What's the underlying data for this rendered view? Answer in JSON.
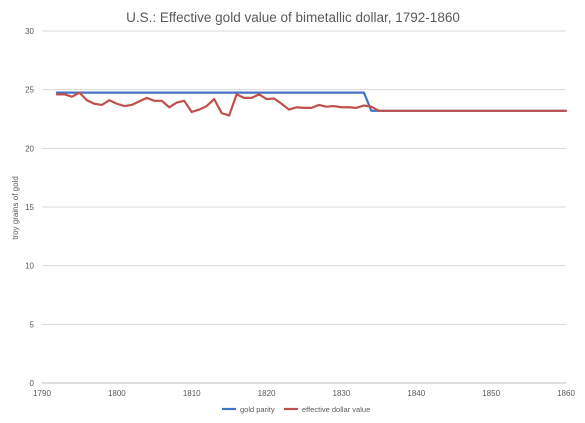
{
  "chart_data": {
    "type": "line",
    "title": "U.S.: Effective gold value of bimetallic dollar, 1792-1860",
    "xlabel": "",
    "ylabel": "troy grains of gold",
    "xlim": [
      1790,
      1860
    ],
    "ylim": [
      0,
      30
    ],
    "x_ticks": [
      1790,
      1800,
      1810,
      1820,
      1830,
      1840,
      1850,
      1860
    ],
    "y_ticks": [
      0,
      5,
      10,
      15,
      20,
      25,
      30
    ],
    "grid": "horizontal",
    "legend_position": "bottom",
    "series": [
      {
        "name": "gold parity",
        "color": "#4472c4",
        "x": [
          1792,
          1833,
          1834,
          1860
        ],
        "y": [
          24.75,
          24.75,
          23.2,
          23.2
        ]
      },
      {
        "name": "effective dollar value",
        "color": "#c0504d",
        "x": [
          1792,
          1793,
          1794,
          1795,
          1796,
          1797,
          1798,
          1799,
          1800,
          1801,
          1802,
          1803,
          1804,
          1805,
          1806,
          1807,
          1808,
          1809,
          1810,
          1811,
          1812,
          1813,
          1814,
          1815,
          1816,
          1817,
          1818,
          1819,
          1820,
          1821,
          1822,
          1823,
          1824,
          1825,
          1826,
          1827,
          1828,
          1829,
          1830,
          1831,
          1832,
          1833,
          1834,
          1835,
          1840,
          1850,
          1860
        ],
        "y": [
          24.6,
          24.6,
          24.4,
          24.75,
          24.1,
          23.8,
          23.7,
          24.1,
          23.8,
          23.6,
          23.7,
          24.0,
          24.3,
          24.05,
          24.05,
          23.5,
          23.9,
          24.05,
          23.1,
          23.3,
          23.6,
          24.2,
          23.0,
          22.8,
          24.6,
          24.3,
          24.3,
          24.6,
          24.2,
          24.25,
          23.8,
          23.3,
          23.5,
          23.45,
          23.45,
          23.7,
          23.55,
          23.6,
          23.5,
          23.5,
          23.45,
          23.65,
          23.55,
          23.2,
          23.2,
          23.2,
          23.2
        ]
      }
    ]
  }
}
